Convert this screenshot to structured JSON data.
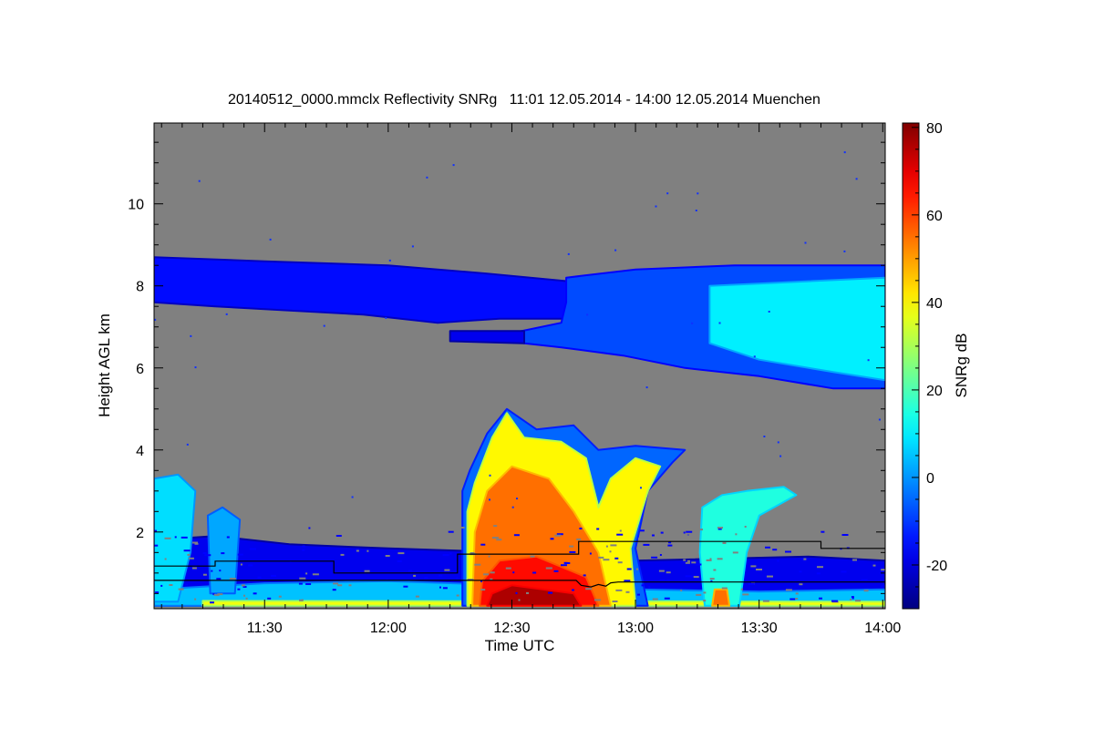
{
  "chart_data": {
    "type": "heatmap",
    "title": "20140512_0000.mmclx Reflectivity SNRg   11:01 12.05.2014 - 14:00 12.05.2014 Muenchen",
    "xlabel": "Time UTC",
    "ylabel": "Height AGL km",
    "colorbar_label": "SNRg dB",
    "xlim_hours": [
      11.053,
      14.01
    ],
    "ylim_km": [
      0.13,
      11.97
    ],
    "clim_db": [
      -30,
      81
    ],
    "x_ticks": [
      {
        "v": 11.5,
        "label": "11:30"
      },
      {
        "v": 12.0,
        "label": "12:00"
      },
      {
        "v": 12.5,
        "label": "12:30"
      },
      {
        "v": 13.0,
        "label": "13:00"
      },
      {
        "v": 13.5,
        "label": "13:30"
      },
      {
        "v": 14.0,
        "label": "14:00"
      }
    ],
    "y_ticks": [
      {
        "v": 2,
        "label": "2"
      },
      {
        "v": 4,
        "label": "4"
      },
      {
        "v": 6,
        "label": "6"
      },
      {
        "v": 8,
        "label": "8"
      },
      {
        "v": 10,
        "label": "10"
      }
    ],
    "colorbar_ticks": [
      {
        "v": -20,
        "label": "-20"
      },
      {
        "v": 0,
        "label": "0"
      },
      {
        "v": 20,
        "label": "20"
      },
      {
        "v": 40,
        "label": "40"
      },
      {
        "v": 60,
        "label": "60"
      },
      {
        "v": 80,
        "label": "80"
      }
    ],
    "background_color": "#808080",
    "echo_regions": [
      {
        "name": "low-level-clutter",
        "db": -18,
        "points": [
          [
            11.053,
            0.2
          ],
          [
            14.01,
            0.2
          ],
          [
            14.01,
            1.3
          ],
          [
            13.7,
            1.4
          ],
          [
            13.0,
            1.3
          ],
          [
            12.5,
            1.5
          ],
          [
            12.0,
            1.6
          ],
          [
            11.6,
            1.7
          ],
          [
            11.3,
            1.9
          ],
          [
            11.053,
            1.8
          ]
        ]
      },
      {
        "name": "low-level-cyan",
        "db": 5,
        "points": [
          [
            11.053,
            0.2
          ],
          [
            14.01,
            0.2
          ],
          [
            14.01,
            0.6
          ],
          [
            13.5,
            0.55
          ],
          [
            13.0,
            0.6
          ],
          [
            12.5,
            0.7
          ],
          [
            12.0,
            0.8
          ],
          [
            11.5,
            0.75
          ],
          [
            11.053,
            0.6
          ]
        ]
      },
      {
        "name": "surface-yellow-strip",
        "db": 38,
        "points": [
          [
            11.25,
            0.2
          ],
          [
            14.01,
            0.2
          ],
          [
            14.01,
            0.3
          ],
          [
            11.25,
            0.32
          ]
        ]
      },
      {
        "name": "cirrus-band-left",
        "db": -15,
        "points": [
          [
            11.053,
            8.7
          ],
          [
            11.5,
            8.6
          ],
          [
            12.0,
            8.5
          ],
          [
            12.4,
            8.3
          ],
          [
            12.75,
            8.1
          ],
          [
            12.75,
            7.2
          ],
          [
            12.45,
            7.2
          ],
          [
            12.2,
            7.1
          ],
          [
            11.9,
            7.3
          ],
          [
            11.6,
            7.4
          ],
          [
            11.3,
            7.5
          ],
          [
            11.053,
            7.6
          ]
        ]
      },
      {
        "name": "cirrus-band-right",
        "db": -8,
        "points": [
          [
            12.72,
            8.2
          ],
          [
            13.0,
            8.4
          ],
          [
            13.4,
            8.5
          ],
          [
            14.01,
            8.5
          ],
          [
            14.01,
            5.5
          ],
          [
            13.8,
            5.5
          ],
          [
            13.5,
            5.8
          ],
          [
            13.2,
            6.0
          ],
          [
            12.95,
            6.3
          ],
          [
            12.7,
            6.5
          ],
          [
            12.55,
            6.6
          ],
          [
            12.5,
            6.85
          ],
          [
            12.7,
            7.1
          ],
          [
            12.72,
            7.6
          ]
        ]
      },
      {
        "name": "cirrus-core",
        "db": 10,
        "points": [
          [
            13.3,
            8.0
          ],
          [
            14.01,
            8.2
          ],
          [
            14.01,
            5.7
          ],
          [
            13.8,
            5.9
          ],
          [
            13.5,
            6.2
          ],
          [
            13.3,
            6.6
          ]
        ]
      },
      {
        "name": "thin-layer-6.7km",
        "db": -18,
        "points": [
          [
            12.25,
            6.9
          ],
          [
            12.55,
            6.9
          ],
          [
            12.55,
            6.6
          ],
          [
            12.25,
            6.65
          ]
        ]
      },
      {
        "name": "left-cell",
        "db": 8,
        "points": [
          [
            11.053,
            0.3
          ],
          [
            11.15,
            0.3
          ],
          [
            11.2,
            1.5
          ],
          [
            11.22,
            3.0
          ],
          [
            11.15,
            3.4
          ],
          [
            11.053,
            3.3
          ]
        ]
      },
      {
        "name": "left-cell-2",
        "db": 2,
        "points": [
          [
            11.28,
            0.5
          ],
          [
            11.38,
            0.5
          ],
          [
            11.4,
            2.3
          ],
          [
            11.33,
            2.6
          ],
          [
            11.27,
            2.4
          ]
        ]
      },
      {
        "name": "convective-outer",
        "db": -5,
        "points": [
          [
            12.3,
            0.2
          ],
          [
            13.05,
            0.2
          ],
          [
            13.0,
            1.6
          ],
          [
            13.05,
            3.0
          ],
          [
            13.15,
            3.7
          ],
          [
            13.2,
            4.0
          ],
          [
            13.0,
            4.1
          ],
          [
            12.85,
            4.0
          ],
          [
            12.75,
            4.6
          ],
          [
            12.6,
            4.5
          ],
          [
            12.48,
            5.0
          ],
          [
            12.4,
            4.4
          ],
          [
            12.33,
            3.5
          ],
          [
            12.3,
            3.0
          ]
        ]
      },
      {
        "name": "convective-yellow",
        "db": 40,
        "points": [
          [
            12.32,
            0.2
          ],
          [
            13.0,
            0.2
          ],
          [
            12.98,
            1.6
          ],
          [
            13.05,
            3.0
          ],
          [
            13.1,
            3.6
          ],
          [
            13.0,
            3.8
          ],
          [
            12.9,
            3.3
          ],
          [
            12.85,
            2.6
          ],
          [
            12.8,
            3.8
          ],
          [
            12.7,
            4.2
          ],
          [
            12.55,
            4.3
          ],
          [
            12.48,
            4.9
          ],
          [
            12.42,
            4.3
          ],
          [
            12.35,
            3.2
          ],
          [
            12.32,
            2.5
          ]
        ]
      },
      {
        "name": "convective-orange",
        "db": 55,
        "points": [
          [
            12.34,
            0.2
          ],
          [
            12.9,
            0.2
          ],
          [
            12.85,
            1.5
          ],
          [
            12.75,
            2.5
          ],
          [
            12.65,
            3.3
          ],
          [
            12.5,
            3.6
          ],
          [
            12.4,
            3.0
          ],
          [
            12.35,
            2.0
          ]
        ]
      },
      {
        "name": "convective-red",
        "db": 66,
        "points": [
          [
            12.37,
            0.2
          ],
          [
            12.85,
            0.2
          ],
          [
            12.8,
            0.9
          ],
          [
            12.6,
            1.4
          ],
          [
            12.45,
            1.3
          ],
          [
            12.38,
            0.8
          ]
        ]
      },
      {
        "name": "convective-darkred",
        "db": 76,
        "points": [
          [
            12.4,
            0.2
          ],
          [
            12.78,
            0.2
          ],
          [
            12.75,
            0.5
          ],
          [
            12.5,
            0.7
          ],
          [
            12.42,
            0.5
          ]
        ]
      },
      {
        "name": "second-cell",
        "db": 15,
        "points": [
          [
            13.28,
            0.2
          ],
          [
            13.42,
            0.2
          ],
          [
            13.45,
            1.5
          ],
          [
            13.5,
            2.4
          ],
          [
            13.65,
            2.9
          ],
          [
            13.6,
            3.1
          ],
          [
            13.45,
            3.0
          ],
          [
            13.35,
            2.9
          ],
          [
            13.27,
            2.6
          ],
          [
            13.26,
            1.5
          ]
        ]
      },
      {
        "name": "second-cell-core",
        "db": 55,
        "points": [
          [
            13.31,
            0.2
          ],
          [
            13.38,
            0.2
          ],
          [
            13.37,
            0.6
          ],
          [
            13.32,
            0.6
          ]
        ]
      }
    ],
    "lines": [
      {
        "name": "upper-layer-line",
        "points": [
          [
            11.053,
            1.17
          ],
          [
            11.3,
            1.17
          ],
          [
            11.3,
            1.29
          ],
          [
            11.78,
            1.29
          ],
          [
            11.78,
            1.0
          ],
          [
            12.28,
            1.0
          ],
          [
            12.28,
            1.46
          ],
          [
            12.77,
            1.46
          ],
          [
            12.77,
            1.77
          ],
          [
            13.75,
            1.77
          ],
          [
            13.75,
            1.6
          ],
          [
            14.01,
            1.6
          ]
        ]
      },
      {
        "name": "lower-layer-line",
        "points": [
          [
            11.053,
            0.82
          ],
          [
            12.76,
            0.82
          ],
          [
            12.78,
            0.7
          ],
          [
            12.82,
            0.66
          ],
          [
            12.85,
            0.72
          ],
          [
            12.88,
            0.68
          ],
          [
            12.9,
            0.76
          ],
          [
            12.93,
            0.78
          ],
          [
            14.01,
            0.78
          ]
        ]
      }
    ]
  }
}
